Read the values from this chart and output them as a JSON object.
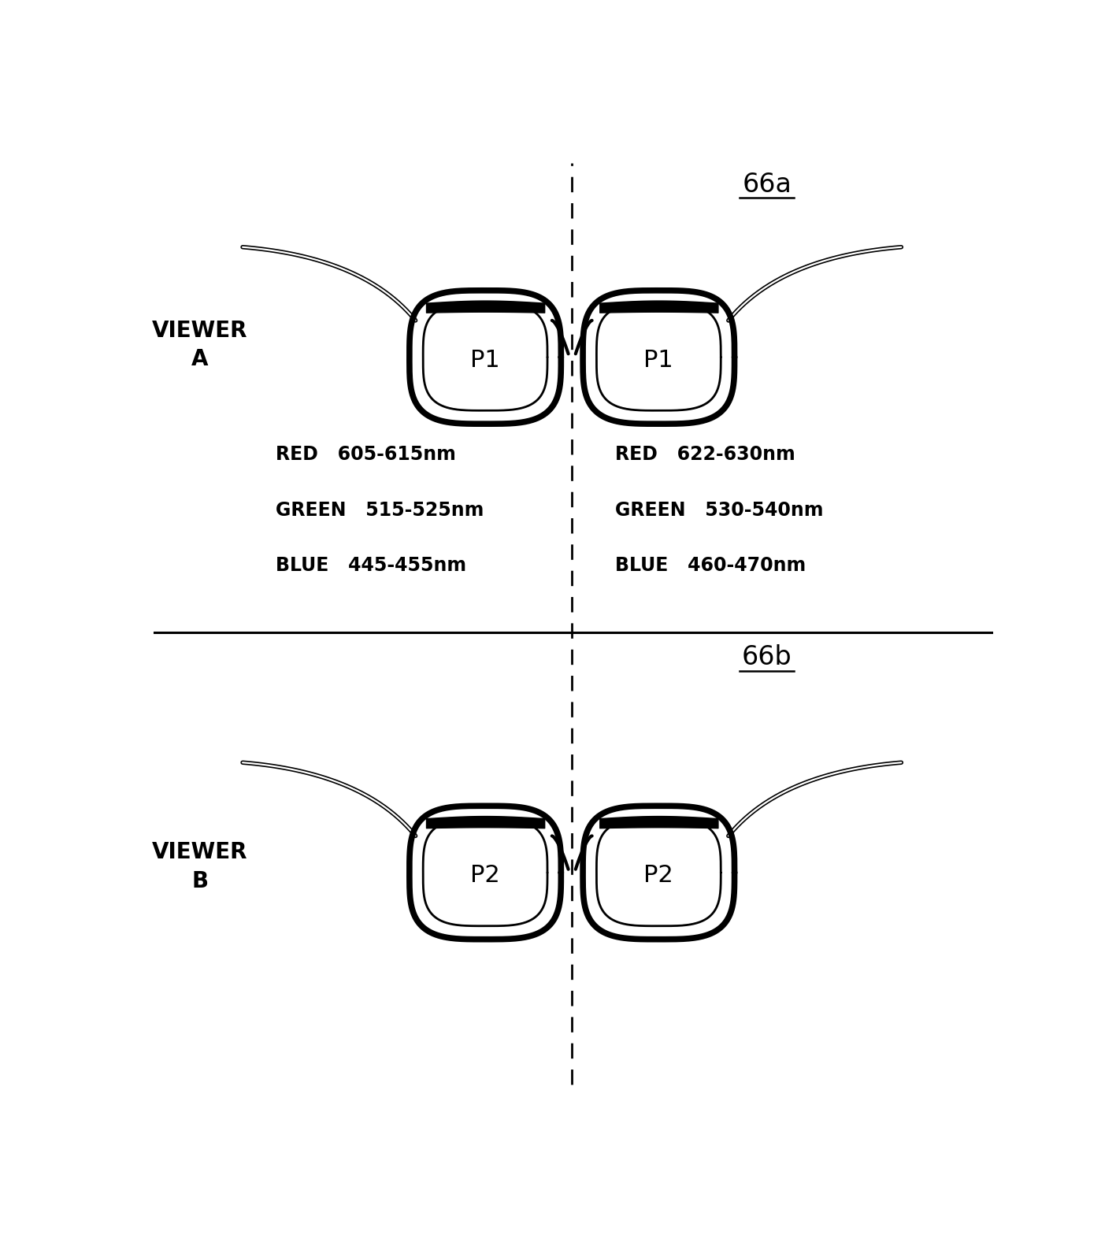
{
  "title_a": "66a",
  "title_b": "66b",
  "viewer_a_label": "VIEWER\nA",
  "viewer_b_label": "VIEWER\nB",
  "lens_a_label": "P1",
  "lens_b_label": "P2",
  "left_specs_a": [
    "RED   605-615nm",
    "GREEN   515-525nm",
    "BLUE   445-455nm"
  ],
  "right_specs_a": [
    "RED   622-630nm",
    "GREEN   530-540nm",
    "BLUE   460-470nm"
  ],
  "bg_color": "#ffffff",
  "line_color": "#000000",
  "text_color": "#000000",
  "figsize": [
    14.17,
    15.91
  ],
  "dpi": 100
}
